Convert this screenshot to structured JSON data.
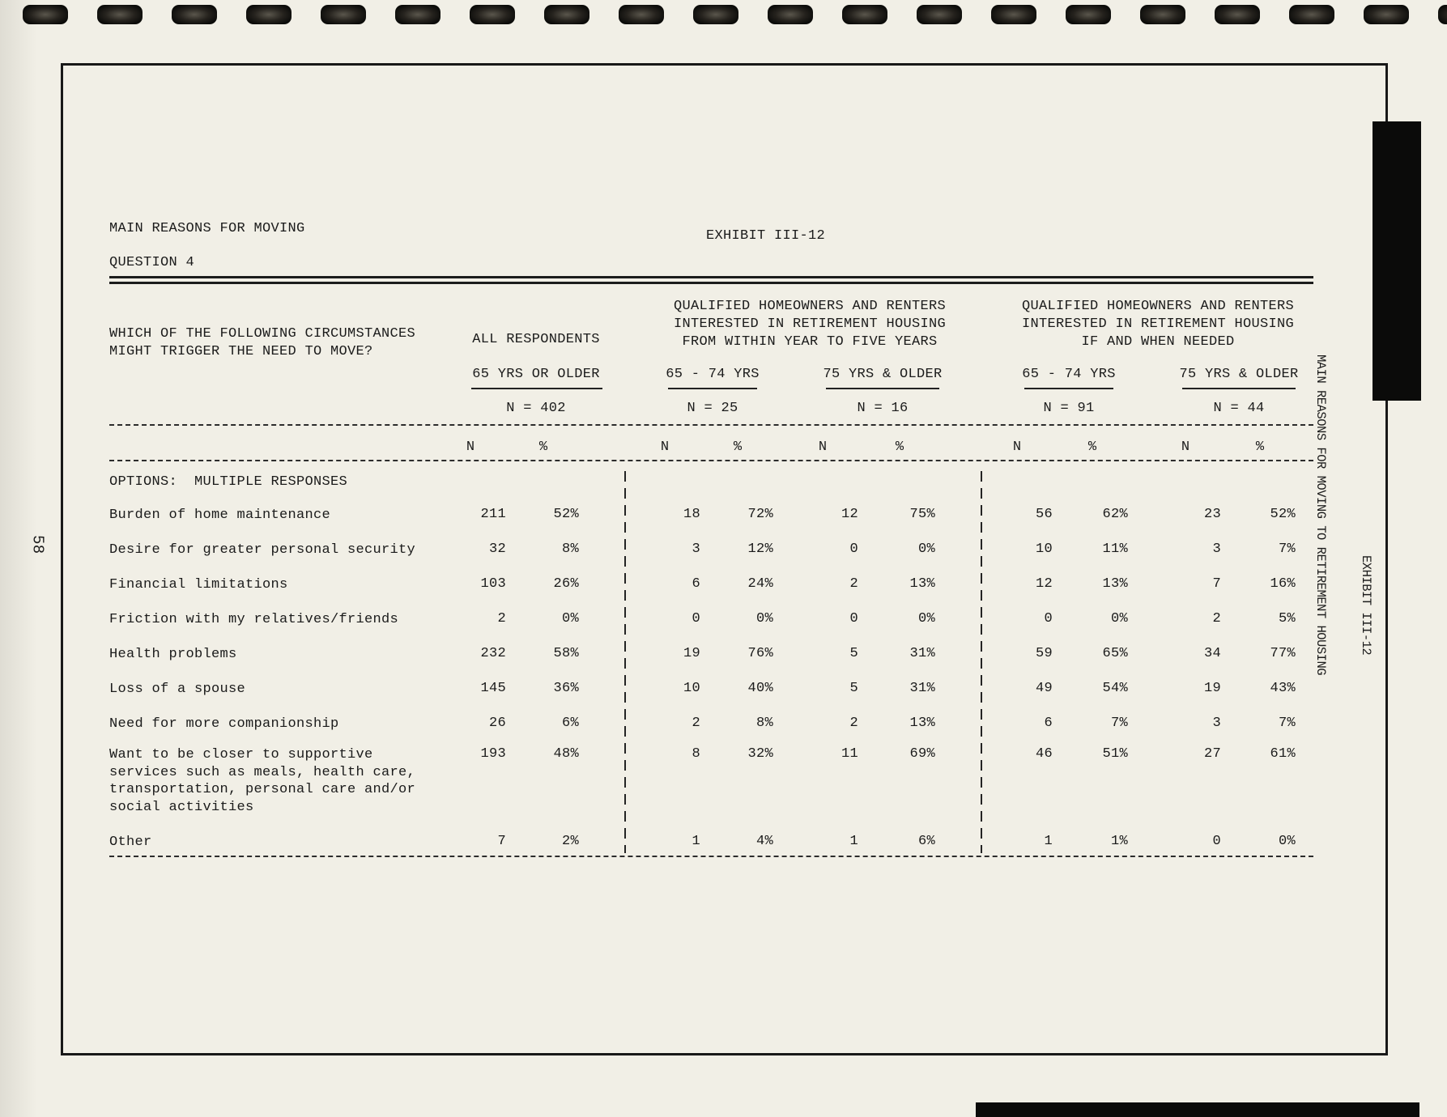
{
  "page": {
    "title": "MAIN REASONS FOR MOVING",
    "exhibit": "EXHIBIT III-12",
    "question": "QUESTION 4",
    "page_number": "58",
    "side_title": "MAIN REASONS FOR MOVING TO RETIREMENT HOUSING",
    "side_exhibit": "EXHIBIT III-12"
  },
  "table": {
    "question_line1": "WHICH OF THE FOLLOWING CIRCUMSTANCES",
    "question_line2": "MIGHT TRIGGER THE NEED TO MOVE?",
    "all_respondents": {
      "label": "ALL RESPONDENTS",
      "sub": "65 YRS OR OLDER",
      "n": "N = 402"
    },
    "group1": {
      "line1": "QUALIFIED HOMEOWNERS AND RENTERS",
      "line2": "INTERESTED IN RETIREMENT HOUSING",
      "line3": "FROM WITHIN YEAR TO FIVE YEARS",
      "sub1": {
        "label": "65 - 74 YRS",
        "n": "N = 25"
      },
      "sub2": {
        "label": "75 YRS & OLDER",
        "n": "N = 16"
      }
    },
    "group2": {
      "line1": "QUALIFIED HOMEOWNERS AND RENTERS",
      "line2": "INTERESTED IN RETIREMENT HOUSING",
      "line3": "IF AND WHEN NEEDED",
      "sub1": {
        "label": "65 - 74 YRS",
        "n": "N = 91"
      },
      "sub2": {
        "label": "75 YRS & OLDER",
        "n": "N = 44"
      }
    },
    "col_n": "N",
    "col_pct": "%",
    "options_label": "OPTIONS:  MULTIPLE RESPONSES",
    "rows": [
      {
        "label_lines": [
          "Burden of home maintenance"
        ],
        "values": [
          "211",
          "52%",
          "18",
          "72%",
          "12",
          "75%",
          "56",
          "62%",
          "23",
          "52%"
        ]
      },
      {
        "label_lines": [
          "Desire for greater personal security"
        ],
        "values": [
          "32",
          "8%",
          "3",
          "12%",
          "0",
          "0%",
          "10",
          "11%",
          "3",
          "7%"
        ]
      },
      {
        "label_lines": [
          "Financial limitations"
        ],
        "values": [
          "103",
          "26%",
          "6",
          "24%",
          "2",
          "13%",
          "12",
          "13%",
          "7",
          "16%"
        ]
      },
      {
        "label_lines": [
          "Friction with my relatives/friends"
        ],
        "values": [
          "2",
          "0%",
          "0",
          "0%",
          "0",
          "0%",
          "0",
          "0%",
          "2",
          "5%"
        ]
      },
      {
        "label_lines": [
          "Health problems"
        ],
        "values": [
          "232",
          "58%",
          "19",
          "76%",
          "5",
          "31%",
          "59",
          "65%",
          "34",
          "77%"
        ]
      },
      {
        "label_lines": [
          "Loss of a spouse"
        ],
        "values": [
          "145",
          "36%",
          "10",
          "40%",
          "5",
          "31%",
          "49",
          "54%",
          "19",
          "43%"
        ]
      },
      {
        "label_lines": [
          "Need for more companionship"
        ],
        "values": [
          "26",
          "6%",
          "2",
          "8%",
          "2",
          "13%",
          "6",
          "7%",
          "3",
          "7%"
        ]
      },
      {
        "label_lines": [
          "Want to be closer to supportive",
          "services such as meals, health care,",
          "transportation, personal care and/or",
          "social activities"
        ],
        "values": [
          "193",
          "48%",
          "8",
          "32%",
          "11",
          "69%",
          "46",
          "51%",
          "27",
          "61%"
        ]
      },
      {
        "label_lines": [
          "Other"
        ],
        "values": [
          "7",
          "2%",
          "1",
          "4%",
          "1",
          "6%",
          "1",
          "1%",
          "0",
          "0%"
        ]
      }
    ]
  }
}
